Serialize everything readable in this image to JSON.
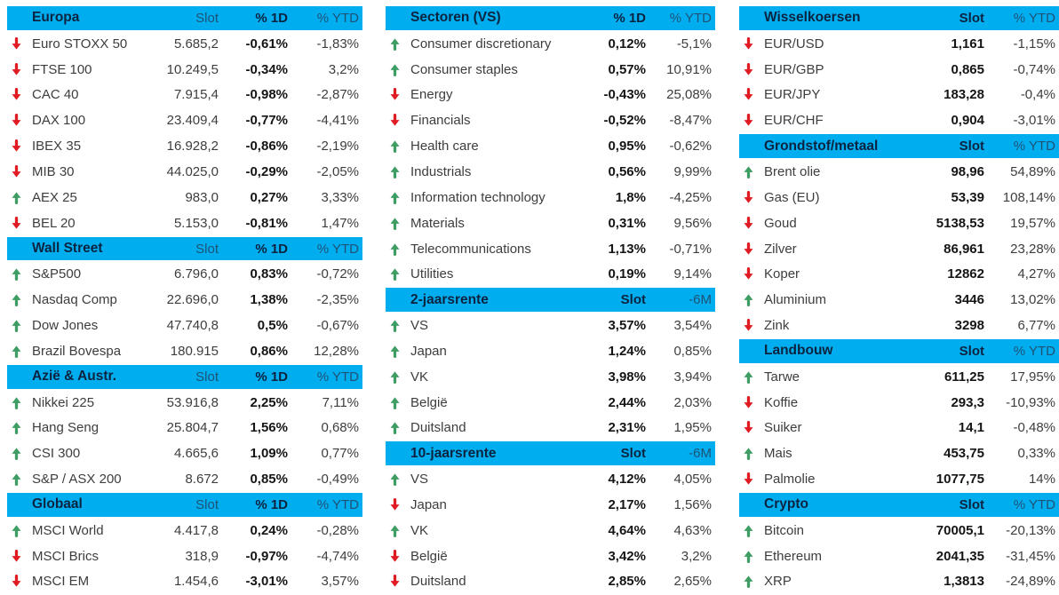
{
  "colors": {
    "header_bg": "#00AEEF",
    "header_title": "#0C2340",
    "header_light": "#1F5276",
    "arrow_up": "#3E9D62",
    "arrow_down": "#E01B22",
    "text_regular": "#3d3d3d",
    "text_bold": "#151515"
  },
  "columns": [
    {
      "name": "indices",
      "kind": "slot3",
      "value_names": [
        "slot",
        "d1",
        "ytd"
      ],
      "bold_value_index": 1,
      "sections": [
        {
          "title": "Europa",
          "headers": [
            "Slot",
            "% 1D",
            "% YTD"
          ],
          "rows": [
            {
              "dir": "down",
              "name": "Euro STOXX 50",
              "values": [
                "5.685,2",
                "-0,61%",
                "-1,83%"
              ]
            },
            {
              "dir": "down",
              "name": "FTSE 100",
              "values": [
                "10.249,5",
                "-0,34%",
                "3,2%"
              ]
            },
            {
              "dir": "down",
              "name": "CAC 40",
              "values": [
                "7.915,4",
                "-0,98%",
                "-2,87%"
              ]
            },
            {
              "dir": "down",
              "name": "DAX 100",
              "values": [
                "23.409,4",
                "-0,77%",
                "-4,41%"
              ]
            },
            {
              "dir": "down",
              "name": "IBEX 35",
              "values": [
                "16.928,2",
                "-0,86%",
                "-2,19%"
              ]
            },
            {
              "dir": "down",
              "name": "MIB 30",
              "values": [
                "44.025,0",
                "-0,29%",
                "-2,05%"
              ]
            },
            {
              "dir": "up",
              "name": "AEX 25",
              "values": [
                "983,0",
                "0,27%",
                "3,33%"
              ]
            },
            {
              "dir": "down",
              "name": "BEL 20",
              "values": [
                "5.153,0",
                "-0,81%",
                "1,47%"
              ]
            }
          ]
        },
        {
          "title": "Wall Street",
          "headers": [
            "Slot",
            "% 1D",
            "% YTD"
          ],
          "rows": [
            {
              "dir": "up",
              "name": "S&P500",
              "values": [
                "6.796,0",
                "0,83%",
                "-0,72%"
              ]
            },
            {
              "dir": "up",
              "name": "Nasdaq Comp",
              "values": [
                "22.696,0",
                "1,38%",
                "-2,35%"
              ]
            },
            {
              "dir": "up",
              "name": "Dow Jones",
              "values": [
                "47.740,8",
                "0,5%",
                "-0,67%"
              ]
            },
            {
              "dir": "up",
              "name": "Brazil Bovespa",
              "values": [
                "180.915",
                "0,86%",
                "12,28%"
              ]
            }
          ]
        },
        {
          "title": "Azië & Austr.",
          "headers": [
            "Slot",
            "% 1D",
            "% YTD"
          ],
          "rows": [
            {
              "dir": "up",
              "name": "Nikkei 225",
              "values": [
                "53.916,8",
                "2,25%",
                "7,11%"
              ]
            },
            {
              "dir": "up",
              "name": "Hang Seng",
              "values": [
                "25.804,7",
                "1,56%",
                "0,68%"
              ]
            },
            {
              "dir": "up",
              "name": "CSI 300",
              "values": [
                "4.665,6",
                "1,09%",
                "0,77%"
              ]
            },
            {
              "dir": "up",
              "name": "S&P / ASX 200",
              "values": [
                "8.672",
                "0,85%",
                "-0,49%"
              ]
            }
          ]
        },
        {
          "title": "Globaal",
          "headers": [
            "Slot",
            "% 1D",
            "% YTD"
          ],
          "rows": [
            {
              "dir": "up",
              "name": "MSCI World",
              "values": [
                "4.417,8",
                "0,24%",
                "-0,28%"
              ]
            },
            {
              "dir": "down",
              "name": "MSCI Brics",
              "values": [
                "318,9",
                "-0,97%",
                "-4,74%"
              ]
            },
            {
              "dir": "down",
              "name": "MSCI EM",
              "values": [
                "1.454,6",
                "-3,01%",
                "3,57%"
              ]
            }
          ]
        }
      ]
    },
    {
      "name": "sectors-and-rates",
      "kind": "pct2",
      "value_names": [
        "d1",
        "ytd"
      ],
      "bold_value_index": 0,
      "sections": [
        {
          "title": "Sectoren (VS)",
          "headers": [
            "% 1D",
            "% YTD"
          ],
          "rows": [
            {
              "dir": "up",
              "name": "Consumer discretionary",
              "values": [
                "0,12%",
                "-5,1%"
              ]
            },
            {
              "dir": "up",
              "name": "Consumer staples",
              "values": [
                "0,57%",
                "10,91%"
              ]
            },
            {
              "dir": "down",
              "name": "Energy",
              "values": [
                "-0,43%",
                "25,08%"
              ]
            },
            {
              "dir": "down",
              "name": "Financials",
              "values": [
                "-0,52%",
                "-8,47%"
              ]
            },
            {
              "dir": "up",
              "name": "Health care",
              "values": [
                "0,95%",
                "-0,62%"
              ]
            },
            {
              "dir": "up",
              "name": "Industrials",
              "values": [
                "0,56%",
                "9,99%"
              ]
            },
            {
              "dir": "up",
              "name": "Information technology",
              "values": [
                "1,8%",
                "-4,25%"
              ]
            },
            {
              "dir": "up",
              "name": "Materials",
              "values": [
                "0,31%",
                "9,56%"
              ]
            },
            {
              "dir": "up",
              "name": "Telecommunications",
              "values": [
                "1,13%",
                "-0,71%"
              ]
            },
            {
              "dir": "up",
              "name": "Utilities",
              "values": [
                "0,19%",
                "9,14%"
              ]
            }
          ]
        },
        {
          "title": "2-jaarsrente",
          "headers": [
            "Slot",
            "-6M"
          ],
          "rows": [
            {
              "dir": "up",
              "name": "VS",
              "values": [
                "3,57%",
                "3,54%"
              ]
            },
            {
              "dir": "up",
              "name": "Japan",
              "values": [
                "1,24%",
                "0,85%"
              ]
            },
            {
              "dir": "up",
              "name": "VK",
              "values": [
                "3,98%",
                "3,94%"
              ]
            },
            {
              "dir": "up",
              "name": "België",
              "values": [
                "2,44%",
                "2,03%"
              ]
            },
            {
              "dir": "up",
              "name": "Duitsland",
              "values": [
                "2,31%",
                "1,95%"
              ]
            }
          ]
        },
        {
          "title": "10-jaarsrente",
          "headers": [
            "Slot",
            "-6M"
          ],
          "rows": [
            {
              "dir": "up",
              "name": "VS",
              "values": [
                "4,12%",
                "4,05%"
              ]
            },
            {
              "dir": "down",
              "name": "Japan",
              "values": [
                "2,17%",
                "1,56%"
              ]
            },
            {
              "dir": "up",
              "name": "VK",
              "values": [
                "4,64%",
                "4,63%"
              ]
            },
            {
              "dir": "down",
              "name": "België",
              "values": [
                "3,42%",
                "3,2%"
              ]
            },
            {
              "dir": "down",
              "name": "Duitsland",
              "values": [
                "2,85%",
                "2,65%"
              ]
            }
          ]
        }
      ]
    },
    {
      "name": "fx-commodities-crypto",
      "kind": "slot2",
      "value_names": [
        "slot",
        "ytd"
      ],
      "bold_value_index": 0,
      "sections": [
        {
          "title": "Wisselkoersen",
          "headers": [
            "Slot",
            "% YTD"
          ],
          "rows": [
            {
              "dir": "down",
              "name": "EUR/USD",
              "values": [
                "1,161",
                "-1,15%"
              ]
            },
            {
              "dir": "down",
              "name": "EUR/GBP",
              "values": [
                "0,865",
                "-0,74%"
              ]
            },
            {
              "dir": "down",
              "name": "EUR/JPY",
              "values": [
                "183,28",
                "-0,4%"
              ]
            },
            {
              "dir": "down",
              "name": "EUR/CHF",
              "values": [
                "0,904",
                "-3,01%"
              ]
            }
          ]
        },
        {
          "title": "Grondstof/metaal",
          "headers": [
            "Slot",
            "% YTD"
          ],
          "rows": [
            {
              "dir": "up",
              "name": "Brent olie",
              "values": [
                "98,96",
                "54,89%"
              ]
            },
            {
              "dir": "down",
              "name": "Gas (EU)",
              "values": [
                "53,39",
                "108,14%"
              ]
            },
            {
              "dir": "down",
              "name": "Goud",
              "values": [
                "5138,53",
                "19,57%"
              ]
            },
            {
              "dir": "down",
              "name": "Zilver",
              "values": [
                "86,961",
                "23,28%"
              ]
            },
            {
              "dir": "down",
              "name": "Koper",
              "values": [
                "12862",
                "4,27%"
              ]
            },
            {
              "dir": "up",
              "name": "Aluminium",
              "values": [
                "3446",
                "13,02%"
              ]
            },
            {
              "dir": "down",
              "name": "Zink",
              "values": [
                "3298",
                "6,77%"
              ]
            }
          ]
        },
        {
          "title": "Landbouw",
          "headers": [
            "Slot",
            "% YTD"
          ],
          "rows": [
            {
              "dir": "up",
              "name": "Tarwe",
              "values": [
                "611,25",
                "17,95%"
              ]
            },
            {
              "dir": "down",
              "name": "Koffie",
              "values": [
                "293,3",
                "-10,93%"
              ]
            },
            {
              "dir": "down",
              "name": "Suiker",
              "values": [
                "14,1",
                "-0,48%"
              ]
            },
            {
              "dir": "up",
              "name": "Mais",
              "values": [
                "453,75",
                "0,33%"
              ]
            },
            {
              "dir": "down",
              "name": "Palmolie",
              "values": [
                "1077,75",
                "14%"
              ]
            }
          ]
        },
        {
          "title": "Crypto",
          "headers": [
            "Slot",
            "% YTD"
          ],
          "rows": [
            {
              "dir": "up",
              "name": "Bitcoin",
              "values": [
                "70005,1",
                "-20,13%"
              ]
            },
            {
              "dir": "up",
              "name": "Ethereum",
              "values": [
                "2041,35",
                "-31,45%"
              ]
            },
            {
              "dir": "up",
              "name": "XRP",
              "values": [
                "1,3813",
                "-24,89%"
              ]
            }
          ]
        }
      ]
    }
  ]
}
